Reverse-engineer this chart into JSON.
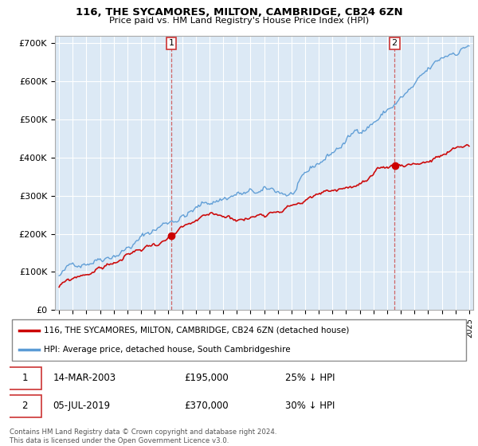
{
  "title": "116, THE SYCAMORES, MILTON, CAMBRIDGE, CB24 6ZN",
  "subtitle": "Price paid vs. HM Land Registry's House Price Index (HPI)",
  "hpi_color": "#5b9bd5",
  "price_color": "#cc0000",
  "marker1_x": 2003.2,
  "marker2_x": 2019.54,
  "marker1_price": 195000,
  "marker2_price": 370000,
  "marker1_label": "14-MAR-2003",
  "marker1_value": "£195,000",
  "marker1_pct": "25% ↓ HPI",
  "marker2_label": "05-JUL-2019",
  "marker2_value": "£370,000",
  "marker2_pct": "30% ↓ HPI",
  "legend_line1": "116, THE SYCAMORES, MILTON, CAMBRIDGE, CB24 6ZN (detached house)",
  "legend_line2": "HPI: Average price, detached house, South Cambridgeshire",
  "footer": "Contains HM Land Registry data © Crown copyright and database right 2024.\nThis data is licensed under the Open Government Licence v3.0.",
  "ylim": [
    0,
    720000
  ],
  "yticks": [
    0,
    100000,
    200000,
    300000,
    400000,
    500000,
    600000,
    700000
  ],
  "ytick_labels": [
    "£0",
    "£100K",
    "£200K",
    "£300K",
    "£400K",
    "£500K",
    "£600K",
    "£700K"
  ],
  "bg_color": "#dce9f5",
  "xlim_left": 1994.7,
  "xlim_right": 2025.3
}
